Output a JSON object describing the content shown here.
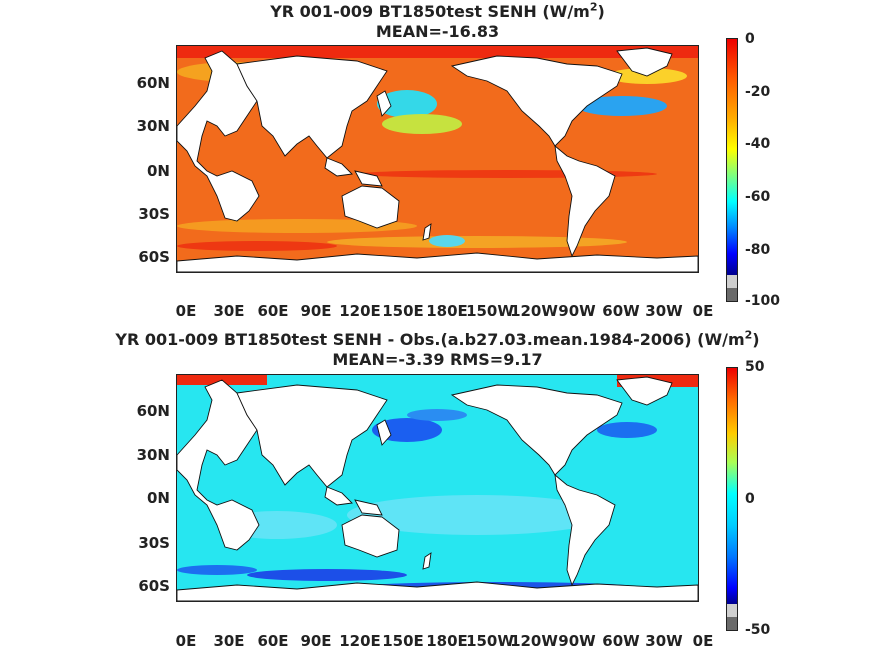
{
  "panels": [
    {
      "title_line1_pre": "YR 001-009 BT1850test  SENH (W/m",
      "title_sup": "2",
      "title_line1_post": ")",
      "title_line2": "MEAN=-16.83",
      "lat_labels": [
        "60N",
        "30N",
        "0N",
        "30S",
        "60S"
      ],
      "lon_labels": [
        "0E",
        "30E",
        "60E",
        "90E",
        "120E",
        "150E",
        "180E",
        "150W",
        "120W",
        "90W",
        "60W",
        "30W",
        "0E"
      ],
      "colorbar_labels": [
        "0",
        "-20",
        "-40",
        "-60",
        "-80",
        "-100"
      ],
      "colorbar_range": [
        -100,
        0
      ],
      "field_dominant_color": "#f26b1c"
    },
    {
      "title_line1_pre": "YR 001-009 BT1850test SENH - Obs.(a.b27.03.mean.1984-2006) (W/m",
      "title_sup": "2",
      "title_line1_post": ")",
      "title_line2": "MEAN=-3.39 RMS=9.17",
      "lat_labels": [
        "60N",
        "30N",
        "0N",
        "30S",
        "60S"
      ],
      "lon_labels": [
        "0E",
        "30E",
        "60E",
        "90E",
        "120E",
        "150E",
        "180E",
        "150W",
        "120W",
        "90W",
        "60W",
        "30W",
        "0E"
      ],
      "colorbar_labels": [
        "50",
        "0",
        "-50"
      ],
      "colorbar_range": [
        -50,
        50
      ],
      "field_dominant_color": "#27e6f0"
    }
  ],
  "colors": {
    "land": "#ffffff",
    "coast": "#111111",
    "missing": "#6a6a6a"
  }
}
